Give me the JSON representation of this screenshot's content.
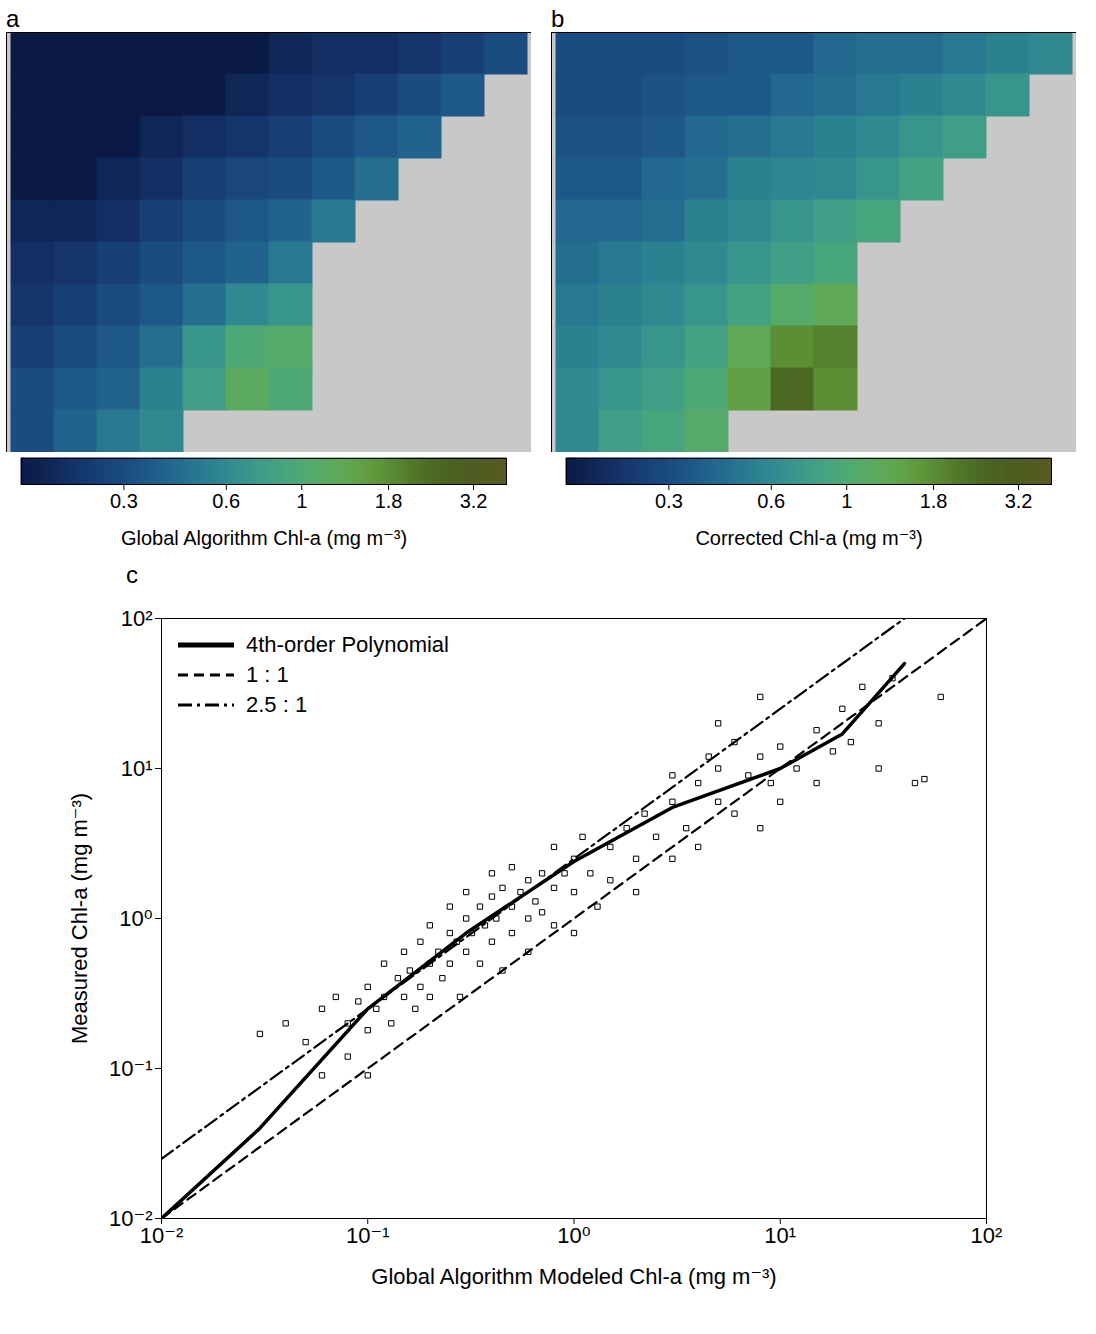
{
  "chart_data": [
    {
      "type": "heatmap",
      "title": "a",
      "cells": [
        [
          0.12,
          0.12,
          0.12,
          0.13,
          0.15,
          0.15,
          0.18,
          0.2,
          0.2,
          0.22,
          0.25,
          0.3
        ],
        [
          0.12,
          0.12,
          0.13,
          0.15,
          0.15,
          0.18,
          0.2,
          0.22,
          0.25,
          0.3,
          0.35,
          null
        ],
        [
          0.13,
          0.13,
          0.15,
          0.18,
          0.2,
          0.22,
          0.25,
          0.3,
          0.35,
          0.4,
          null,
          null
        ],
        [
          0.15,
          0.15,
          0.18,
          0.2,
          0.25,
          0.28,
          0.3,
          0.35,
          0.45,
          null,
          null,
          null
        ],
        [
          0.18,
          0.18,
          0.2,
          0.25,
          0.3,
          0.35,
          0.4,
          0.5,
          null,
          null,
          null,
          null
        ],
        [
          0.2,
          0.22,
          0.25,
          0.3,
          0.35,
          0.4,
          0.5,
          null,
          null,
          null,
          null,
          null
        ],
        [
          0.22,
          0.25,
          0.3,
          0.35,
          0.45,
          0.6,
          0.7,
          null,
          null,
          null,
          null,
          null
        ],
        [
          0.25,
          0.3,
          0.35,
          0.45,
          0.7,
          1.0,
          1.1,
          null,
          null,
          null,
          null,
          null
        ],
        [
          0.3,
          0.35,
          0.4,
          0.55,
          0.8,
          1.2,
          1.0,
          null,
          null,
          null,
          null,
          null
        ],
        [
          0.3,
          0.4,
          0.5,
          0.6,
          null,
          null,
          null,
          null,
          null,
          null,
          null,
          null
        ]
      ],
      "colorbar": {
        "label": "Global Algorithm Chl-a (mg m⁻³)",
        "range": [
          0.15,
          4
        ],
        "ticks": [
          0.3,
          0.6,
          1,
          1.8,
          3.2
        ],
        "log": true
      }
    },
    {
      "type": "heatmap",
      "title": "b",
      "cells": [
        [
          0.3,
          0.3,
          0.3,
          0.32,
          0.35,
          0.35,
          0.42,
          0.45,
          0.45,
          0.5,
          0.55,
          0.6
        ],
        [
          0.3,
          0.3,
          0.32,
          0.35,
          0.35,
          0.42,
          0.45,
          0.5,
          0.55,
          0.6,
          0.7,
          null
        ],
        [
          0.32,
          0.32,
          0.35,
          0.42,
          0.45,
          0.5,
          0.55,
          0.6,
          0.7,
          0.8,
          null,
          null
        ],
        [
          0.35,
          0.35,
          0.42,
          0.45,
          0.55,
          0.58,
          0.6,
          0.7,
          0.85,
          null,
          null,
          null
        ],
        [
          0.42,
          0.42,
          0.45,
          0.55,
          0.6,
          0.7,
          0.8,
          0.9,
          null,
          null,
          null,
          null
        ],
        [
          0.45,
          0.5,
          0.55,
          0.6,
          0.7,
          0.8,
          0.9,
          null,
          null,
          null,
          null,
          null
        ],
        [
          0.5,
          0.55,
          0.6,
          0.7,
          0.85,
          1.1,
          1.3,
          null,
          null,
          null,
          null,
          null
        ],
        [
          0.55,
          0.6,
          0.7,
          0.85,
          1.3,
          1.8,
          2.0,
          null,
          null,
          null,
          null,
          null
        ],
        [
          0.6,
          0.7,
          0.8,
          1.0,
          1.5,
          2.5,
          1.8,
          null,
          null,
          null,
          null,
          null
        ],
        [
          0.6,
          0.8,
          0.9,
          1.1,
          null,
          null,
          null,
          null,
          null,
          null,
          null,
          null
        ]
      ],
      "colorbar": {
        "label": "Corrected Chl-a (mg m⁻³)",
        "range": [
          0.15,
          4
        ],
        "ticks": [
          0.3,
          0.6,
          1,
          1.8,
          3.2
        ],
        "log": true
      }
    },
    {
      "type": "scatter",
      "title": "c",
      "log": true,
      "grid": false,
      "legend": "top-left",
      "x_label": "Global Algorithm Modeled Chl-a (mg m⁻³)",
      "y_label": "Measured Chl-a (mg m⁻³)",
      "xlim": [
        0.01,
        100
      ],
      "ylim": [
        0.01,
        100
      ],
      "xticks": [
        {
          "value": 0.01,
          "label": "10⁻²"
        },
        {
          "value": 0.1,
          "label": "10⁻¹"
        },
        {
          "value": 1,
          "label": "10⁰"
        },
        {
          "value": 10,
          "label": "10¹"
        },
        {
          "value": 100,
          "label": "10²"
        }
      ],
      "yticks": [
        {
          "value": 0.01,
          "label": "10⁻²"
        },
        {
          "value": 0.1,
          "label": "10⁻¹"
        },
        {
          "value": 1,
          "label": "10⁰"
        },
        {
          "value": 10,
          "label": "10¹"
        },
        {
          "value": 100,
          "label": "10²"
        }
      ],
      "series": [
        {
          "type": "scatter",
          "marker": "square",
          "color": "#000000",
          "x": [
            0.04,
            0.05,
            0.06,
            0.07,
            0.08,
            0.08,
            0.09,
            0.1,
            0.1,
            0.1,
            0.11,
            0.12,
            0.12,
            0.13,
            0.14,
            0.15,
            0.15,
            0.16,
            0.17,
            0.18,
            0.18,
            0.2,
            0.2,
            0.2,
            0.22,
            0.23,
            0.25,
            0.25,
            0.25,
            0.27,
            0.28,
            0.3,
            0.3,
            0.3,
            0.32,
            0.35,
            0.35,
            0.37,
            0.4,
            0.4,
            0.4,
            0.42,
            0.45,
            0.45,
            0.5,
            0.5,
            0.5,
            0.55,
            0.6,
            0.6,
            0.6,
            0.65,
            0.7,
            0.7,
            0.8,
            0.8,
            0.8,
            0.9,
            1.0,
            1.0,
            1.0,
            1.1,
            1.2,
            1.3,
            1.5,
            1.5,
            1.8,
            2.0,
            2.0,
            2.2,
            2.5,
            3,
            3,
            3,
            3.5,
            4,
            4,
            4.5,
            5,
            5,
            6,
            6,
            7,
            8,
            8,
            9,
            10,
            10,
            12,
            15,
            15,
            18,
            20,
            22,
            25,
            30,
            30,
            35,
            45,
            50,
            60,
            8,
            5,
            0.03,
            0.06
          ],
          "values": [
            0.2,
            0.15,
            0.25,
            0.3,
            0.2,
            0.12,
            0.28,
            0.35,
            0.18,
            0.09,
            0.25,
            0.3,
            0.5,
            0.2,
            0.4,
            0.3,
            0.6,
            0.45,
            0.25,
            0.7,
            0.35,
            0.5,
            0.9,
            0.3,
            0.6,
            0.4,
            0.8,
            1.2,
            0.5,
            0.7,
            0.3,
            1.0,
            0.6,
            1.5,
            0.8,
            1.2,
            0.5,
            0.9,
            1.4,
            0.7,
            2.0,
            1.0,
            1.6,
            0.45,
            1.2,
            0.8,
            2.2,
            1.5,
            1.0,
            1.8,
            0.6,
            1.3,
            2.0,
            1.1,
            1.6,
            0.9,
            3.0,
            2.0,
            1.5,
            2.5,
            0.8,
            3.5,
            2.0,
            1.2,
            3.0,
            1.8,
            4.0,
            2.5,
            1.5,
            5.0,
            3.5,
            6,
            2.5,
            9,
            4,
            8,
            3,
            12,
            6,
            10,
            5,
            15,
            9,
            12,
            4,
            8,
            14,
            6,
            10,
            18,
            8,
            13,
            25,
            15,
            35,
            20,
            10,
            40,
            8,
            8.5,
            30,
            30,
            20,
            0.17,
            0.09
          ]
        },
        {
          "name": "4th-order Polynomial",
          "type": "line",
          "line_style": "solid",
          "color": "#000000",
          "x": [
            0.01,
            0.03,
            0.1,
            0.3,
            1,
            3,
            10,
            20,
            40
          ],
          "values": [
            0.01,
            0.04,
            0.25,
            0.8,
            2.4,
            5.5,
            10,
            17,
            50
          ]
        },
        {
          "name": "1 : 1",
          "type": "line",
          "line_style": "dashed",
          "color": "#000000",
          "x": [
            0.01,
            100
          ],
          "values": [
            0.01,
            100
          ]
        },
        {
          "name": "2.5 : 1",
          "type": "line",
          "line_style": "dashdot",
          "color": "#000000",
          "x": [
            0.01,
            40
          ],
          "values": [
            0.025,
            100
          ]
        }
      ]
    }
  ]
}
